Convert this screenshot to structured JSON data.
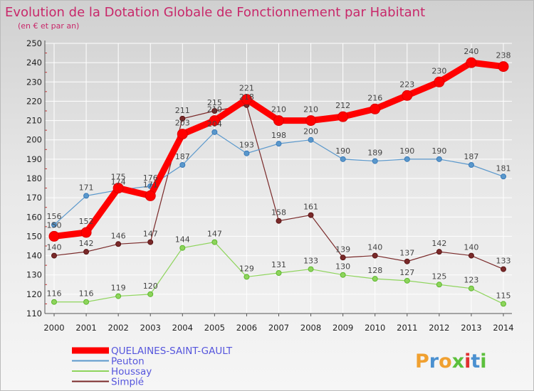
{
  "chart_data": {
    "type": "line",
    "title": "Evolution de la Dotation Globale de Fonctionnement par Habitant",
    "subtitle": "(en € et par an)",
    "xlabel": "",
    "ylabel": "",
    "x": [
      "2000",
      "2001",
      "2002",
      "2003",
      "2004",
      "2005",
      "2006",
      "2007",
      "2008",
      "2009",
      "2010",
      "2011",
      "2012",
      "2013",
      "2014"
    ],
    "ylim": [
      110,
      250
    ],
    "yticks": [
      110,
      120,
      130,
      140,
      150,
      160,
      170,
      180,
      190,
      200,
      210,
      220,
      230,
      240,
      250
    ],
    "series": [
      {
        "name": "Simplé",
        "color": "#7a2a2a",
        "values": [
          140,
          142,
          146,
          147,
          211,
          215,
          218,
          158,
          161,
          139,
          140,
          137,
          142,
          140,
          133
        ]
      },
      {
        "name": "Houssay",
        "color": "#8ed45c",
        "values": [
          116,
          116,
          119,
          120,
          144,
          147,
          129,
          131,
          133,
          130,
          128,
          127,
          125,
          123,
          115
        ]
      },
      {
        "name": "Peuton",
        "color": "#5a98cc",
        "values": [
          156,
          171,
          174,
          176,
          187,
          204,
          193,
          198,
          200,
          190,
          189,
          190,
          190,
          187,
          181
        ]
      },
      {
        "name": "QUELAINES-SAINT-GAULT",
        "color": "#ff0000",
        "values": [
          150,
          152,
          175,
          171,
          203,
          210,
          221,
          210,
          210,
          212,
          216,
          223,
          230,
          240,
          238
        ]
      }
    ],
    "legend_order": [
      "QUELAINES-SAINT-GAULT",
      "Peuton",
      "Houssay",
      "Simplé"
    ],
    "legend_text_color": "#5555dd"
  },
  "logo": {
    "text": "Proxiti",
    "letters": [
      {
        "char": "P",
        "color": "#f0a030"
      },
      {
        "char": "r",
        "color": "#4a90d0"
      },
      {
        "char": "o",
        "color": "#f0a030"
      },
      {
        "char": "x",
        "color": "#5cc03c"
      },
      {
        "char": "i",
        "color": "#e03030"
      },
      {
        "char": "t",
        "color": "#4a90d0"
      },
      {
        "char": "i",
        "color": "#5cc03c"
      }
    ]
  }
}
